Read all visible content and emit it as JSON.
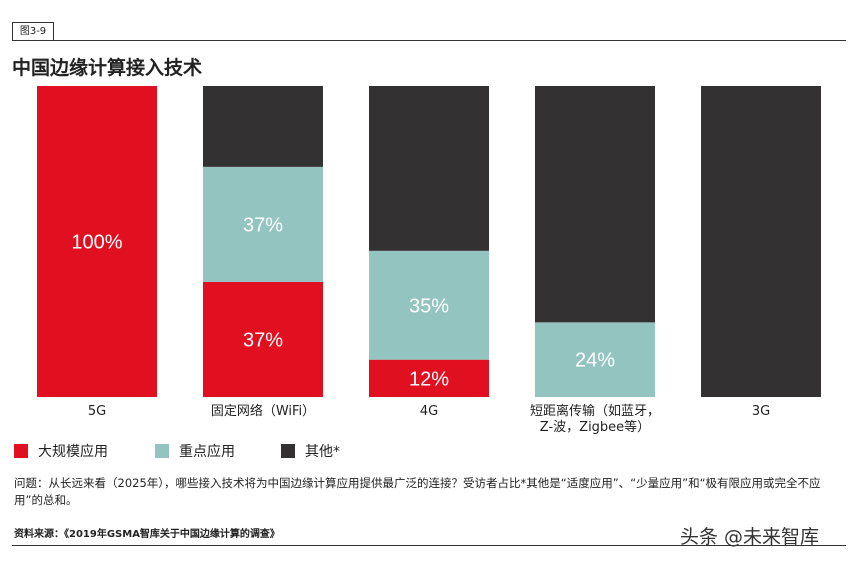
{
  "figure_label": "图3-9",
  "chart_data": {
    "type": "stacked-bar",
    "title": "中国边缘计算接入技术",
    "categories": [
      "5G",
      "固定网络（WiFi）",
      "4G",
      "短距离传输（如蓝牙，\nZ-波，Zigbee等）",
      "3G"
    ],
    "series": [
      {
        "name": "大规模应用",
        "color": "#e01020",
        "values": [
          100,
          37,
          12,
          0,
          0
        ],
        "value_labels": [
          "100%",
          "37%",
          "12%",
          null,
          null
        ]
      },
      {
        "name": "重点应用",
        "color": "#93c4c0",
        "values": [
          0,
          37,
          35,
          24,
          0
        ],
        "value_labels": [
          null,
          "37%",
          "35%",
          "24%",
          null
        ]
      },
      {
        "name": "其他*",
        "color": "#333131",
        "values": [
          0,
          26,
          53,
          76,
          100
        ],
        "value_labels": [
          null,
          null,
          null,
          null,
          null
        ]
      }
    ],
    "ylim": [
      0,
      100
    ]
  },
  "note": "问题：从长远来看（2025年），哪些接入技术将为中国边缘计算应用提供最广泛的连接？受访者占比*其他是“适度应用”、“少量应用”和“极有限应用或完全不应用”的总和。",
  "source": "资料来源：《2019年GSMA智库关于中国边缘计算的调查》",
  "watermark": "头条 @未来智库"
}
